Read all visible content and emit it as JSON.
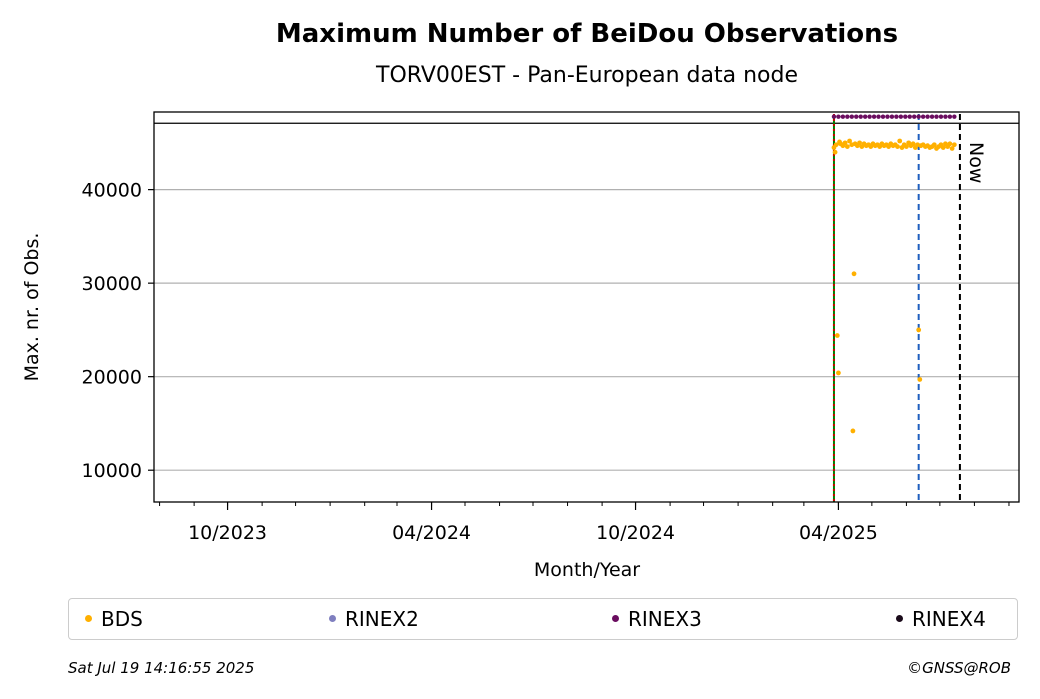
{
  "chart_data": {
    "type": "scatter",
    "title": "Maximum Number of BeiDou Observations",
    "subtitle": "TORV00EST - Pan-European data node",
    "xlabel": "Month/Year",
    "ylabel": "Max. nr. of Obs.",
    "x_range": [
      "2023-07-27",
      "2025-09-10"
    ],
    "ylim": [
      6600,
      48300
    ],
    "y_ticks": [
      10000,
      20000,
      30000,
      40000
    ],
    "x_ticks": [
      {
        "date": "2023-10-01",
        "label": "10/2023"
      },
      {
        "date": "2024-04-01",
        "label": "04/2024"
      },
      {
        "date": "2024-10-01",
        "label": "10/2024"
      },
      {
        "date": "2025-04-01",
        "label": "04/2025"
      }
    ],
    "grid": "y",
    "reference_lines": [
      {
        "date": "2025-03-28",
        "color": "#008000",
        "style": "solid"
      },
      {
        "date": "2025-03-28",
        "color": "#cc0000",
        "style": "dotted"
      },
      {
        "date": "2025-06-12",
        "color": "#1f5fbf",
        "style": "dashed"
      },
      {
        "date": "2025-07-19",
        "color": "#000000",
        "style": "dashed",
        "label": "Now"
      }
    ],
    "horizontal_line": 47100,
    "series": [
      {
        "name": "BDS",
        "color": "#ffb000",
        "points": [
          [
            "2025-03-28",
            44500
          ],
          [
            "2025-03-29",
            44000
          ],
          [
            "2025-03-30",
            44800
          ],
          [
            "2025-03-31",
            24400
          ],
          [
            "2025-04-01",
            20400
          ],
          [
            "2025-04-02",
            45100
          ],
          [
            "2025-04-03",
            44900
          ],
          [
            "2025-04-05",
            44700
          ],
          [
            "2025-04-07",
            45000
          ],
          [
            "2025-04-09",
            44600
          ],
          [
            "2025-04-11",
            45200
          ],
          [
            "2025-04-13",
            44800
          ],
          [
            "2025-04-14",
            14200
          ],
          [
            "2025-04-15",
            31000
          ],
          [
            "2025-04-16",
            44900
          ],
          [
            "2025-04-18",
            44700
          ],
          [
            "2025-04-20",
            45000
          ],
          [
            "2025-04-22",
            44600
          ],
          [
            "2025-04-24",
            44900
          ],
          [
            "2025-04-26",
            44700
          ],
          [
            "2025-04-28",
            44800
          ],
          [
            "2025-04-30",
            44600
          ],
          [
            "2025-05-02",
            44900
          ],
          [
            "2025-05-04",
            44700
          ],
          [
            "2025-05-06",
            44800
          ],
          [
            "2025-05-08",
            44600
          ],
          [
            "2025-05-10",
            44900
          ],
          [
            "2025-05-12",
            44700
          ],
          [
            "2025-05-14",
            44800
          ],
          [
            "2025-05-16",
            44600
          ],
          [
            "2025-05-18",
            44900
          ],
          [
            "2025-05-20",
            44700
          ],
          [
            "2025-05-22",
            44800
          ],
          [
            "2025-05-24",
            44600
          ],
          [
            "2025-05-26",
            45200
          ],
          [
            "2025-05-28",
            44500
          ],
          [
            "2025-05-30",
            44800
          ],
          [
            "2025-06-01",
            44600
          ],
          [
            "2025-06-03",
            45000
          ],
          [
            "2025-06-05",
            44700
          ],
          [
            "2025-06-07",
            44900
          ],
          [
            "2025-06-09",
            44500
          ],
          [
            "2025-06-11",
            44800
          ],
          [
            "2025-06-12",
            25000
          ],
          [
            "2025-06-13",
            19700
          ],
          [
            "2025-06-14",
            44700
          ],
          [
            "2025-06-16",
            44800
          ],
          [
            "2025-06-18",
            44600
          ],
          [
            "2025-06-20",
            44700
          ],
          [
            "2025-06-22",
            44500
          ],
          [
            "2025-06-24",
            44600
          ],
          [
            "2025-06-26",
            44800
          ],
          [
            "2025-06-28",
            44400
          ],
          [
            "2025-06-30",
            44600
          ],
          [
            "2025-07-02",
            44800
          ],
          [
            "2025-07-04",
            44500
          ],
          [
            "2025-07-06",
            44900
          ],
          [
            "2025-07-08",
            44600
          ],
          [
            "2025-07-10",
            44900
          ],
          [
            "2025-07-12",
            44400
          ],
          [
            "2025-07-14",
            44800
          ]
        ]
      },
      {
        "name": "RINEX2",
        "color": "#7f7fbf",
        "points": []
      },
      {
        "name": "RINEX3",
        "color": "#6a0d5f",
        "points": [
          [
            "2025-03-28",
            47800
          ],
          [
            "2025-04-01",
            47800
          ],
          [
            "2025-04-05",
            47800
          ],
          [
            "2025-04-09",
            47800
          ],
          [
            "2025-04-13",
            47800
          ],
          [
            "2025-04-17",
            47800
          ],
          [
            "2025-04-21",
            47800
          ],
          [
            "2025-04-25",
            47800
          ],
          [
            "2025-04-29",
            47800
          ],
          [
            "2025-05-03",
            47800
          ],
          [
            "2025-05-07",
            47800
          ],
          [
            "2025-05-11",
            47800
          ],
          [
            "2025-05-15",
            47800
          ],
          [
            "2025-05-19",
            47800
          ],
          [
            "2025-05-23",
            47800
          ],
          [
            "2025-05-27",
            47800
          ],
          [
            "2025-05-31",
            47800
          ],
          [
            "2025-06-04",
            47800
          ],
          [
            "2025-06-08",
            47800
          ],
          [
            "2025-06-12",
            47800
          ],
          [
            "2025-06-16",
            47800
          ],
          [
            "2025-06-20",
            47800
          ],
          [
            "2025-06-24",
            47800
          ],
          [
            "2025-06-28",
            47800
          ],
          [
            "2025-07-02",
            47800
          ],
          [
            "2025-07-06",
            47800
          ],
          [
            "2025-07-10",
            47800
          ],
          [
            "2025-07-14",
            47800
          ]
        ]
      },
      {
        "name": "RINEX4",
        "color": "#1a0a1a",
        "points": []
      }
    ]
  },
  "legend": {
    "items": [
      {
        "label": "BDS",
        "color": "#ffb000"
      },
      {
        "label": "RINEX2",
        "color": "#7f7fbf"
      },
      {
        "label": "RINEX3",
        "color": "#6a0d5f"
      },
      {
        "label": "RINEX4",
        "color": "#1a0a1a"
      }
    ]
  },
  "footer": {
    "timestamp": "Sat Jul 19 14:16:55 2025",
    "copyright": "©GNSS@ROB"
  }
}
